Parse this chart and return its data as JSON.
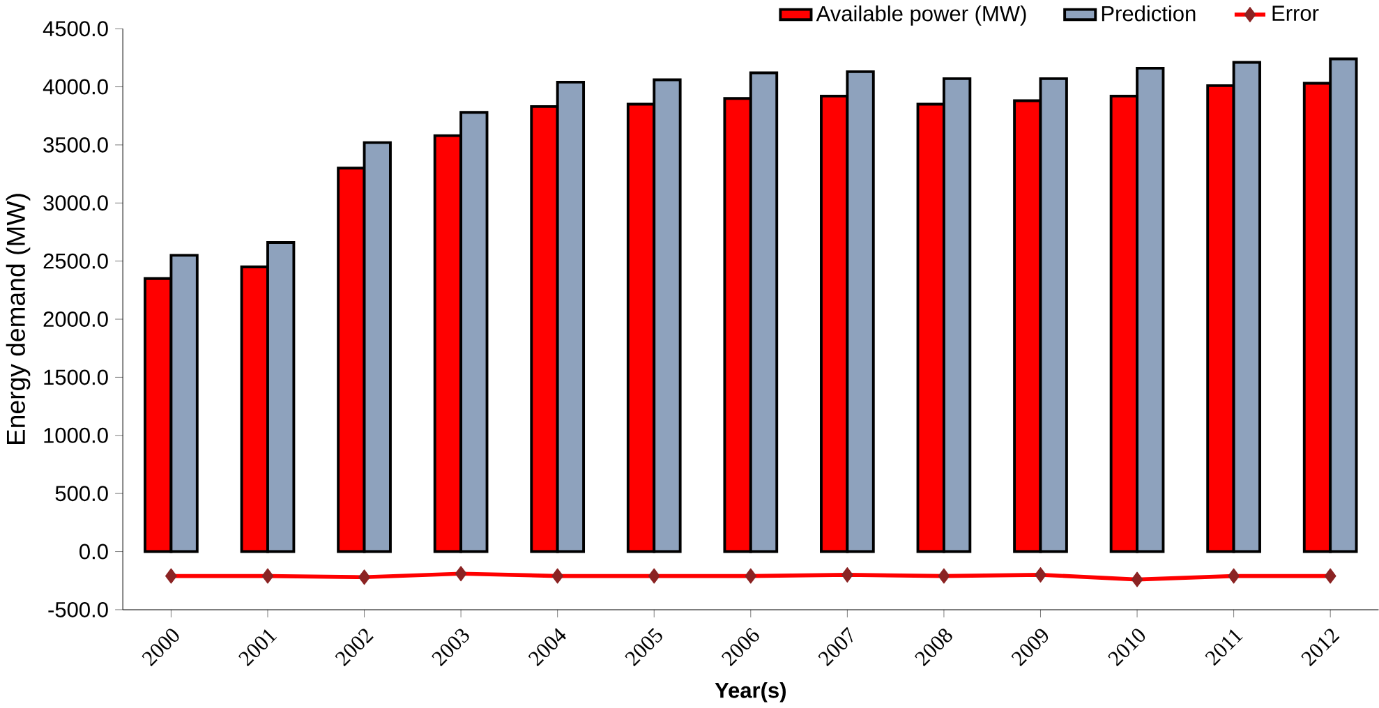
{
  "chart_data": {
    "type": "bar",
    "xlabel": "Year(s)",
    "ylabel": "Energy demand (MW)",
    "categories": [
      "2000",
      "2001",
      "2002",
      "2003",
      "2004",
      "2005",
      "2006",
      "2007",
      "2008",
      "2009",
      "2010",
      "2011",
      "2012"
    ],
    "series": [
      {
        "name": "Available power (MW)",
        "color": "#ff0000",
        "values": [
          2350,
          2450,
          3300,
          3580,
          3830,
          3850,
          3900,
          3920,
          3850,
          3880,
          3920,
          4010,
          4030
        ]
      },
      {
        "name": "Prediction",
        "color": "#8ea2bd",
        "values": [
          2550,
          2660,
          3520,
          3780,
          4040,
          4060,
          4120,
          4130,
          4070,
          4070,
          4160,
          4210,
          4240
        ]
      },
      {
        "name": "Error",
        "type": "line",
        "color": "#ff0000",
        "marker": "diamond",
        "values": [
          -210,
          -210,
          -220,
          -190,
          -210,
          -210,
          -210,
          -200,
          -210,
          -200,
          -240,
          -210,
          -210
        ]
      }
    ],
    "ylim": [
      -500,
      4500
    ],
    "yticks": [
      {
        "value": -500,
        "label": "-500.0"
      },
      {
        "value": 0,
        "label": "0.0"
      },
      {
        "value": 500,
        "label": "500.0"
      },
      {
        "value": 1000,
        "label": "1000.0"
      },
      {
        "value": 1500,
        "label": "1500.0"
      },
      {
        "value": 2000,
        "label": "2000.0"
      },
      {
        "value": 2500,
        "label": "2500.0"
      },
      {
        "value": 3000,
        "label": "3000.0"
      },
      {
        "value": 3500,
        "label": "3500.0"
      },
      {
        "value": 4000,
        "label": "4000.0"
      },
      {
        "value": 4500,
        "label": "4500.0"
      }
    ],
    "grid": false,
    "legend": "top right"
  }
}
